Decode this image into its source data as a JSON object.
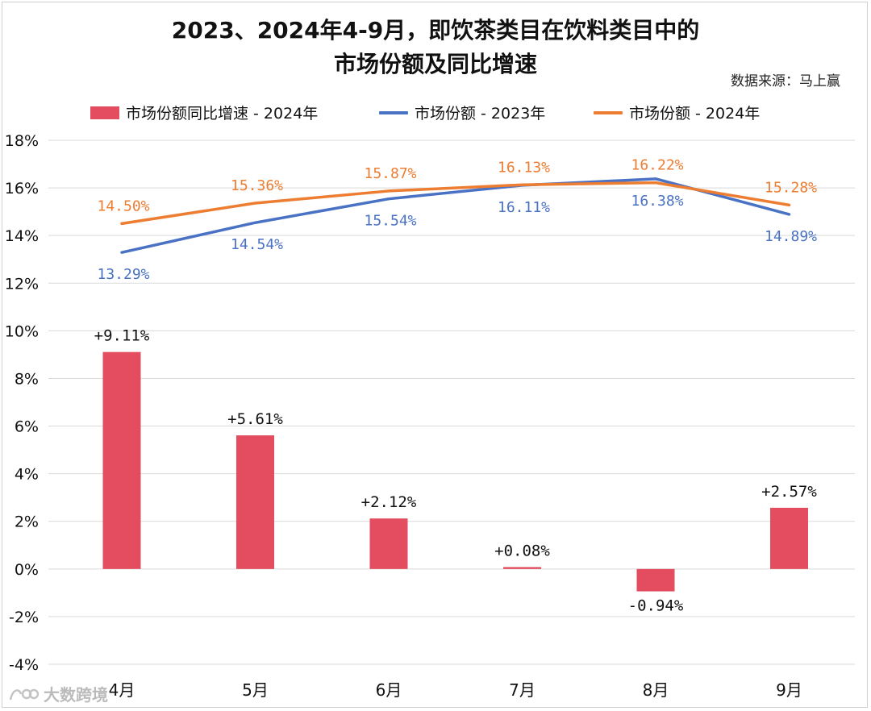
{
  "title_line1": "2023、2024年4-9月，即饮茶类目在饮料类目中的",
  "title_line2": "市场份额及同比增速",
  "source": "数据来源：马上赢",
  "watermark": "大数跨境",
  "colors": {
    "bar": "#E34D5F",
    "line_2023": "#4A72C4",
    "line_2024": "#ED7D31",
    "grid": "#d9d9d9"
  },
  "chart_data": {
    "type": "bar",
    "categories": [
      "4月",
      "5月",
      "6月",
      "7月",
      "8月",
      "9月"
    ],
    "ylim": [
      -4,
      18
    ],
    "yticks": [
      -4,
      -2,
      0,
      2,
      4,
      6,
      8,
      10,
      12,
      14,
      16,
      18
    ],
    "ytick_labels": [
      "-4%",
      "-2%",
      "0%",
      "2%",
      "4%",
      "6%",
      "8%",
      "10%",
      "12%",
      "14%",
      "16%",
      "18%"
    ],
    "grid": true,
    "legend_position": "top",
    "series": [
      {
        "name": "市场份额同比增速 - 2024年",
        "type": "bar",
        "values": [
          9.11,
          5.61,
          2.12,
          0.08,
          -0.94,
          2.57
        ],
        "labels": [
          "+9.11%",
          "+5.61%",
          "+2.12%",
          "+0.08%",
          "-0.94%",
          "+2.57%"
        ]
      },
      {
        "name": "市场份额 - 2023年",
        "type": "line",
        "values": [
          13.29,
          14.54,
          15.54,
          16.11,
          16.38,
          14.89
        ],
        "labels": [
          "13.29%",
          "14.54%",
          "15.54%",
          "16.11%",
          "16.38%",
          "14.89%"
        ]
      },
      {
        "name": "市场份额 - 2024年",
        "type": "line",
        "values": [
          14.5,
          15.36,
          15.87,
          16.13,
          16.22,
          15.28
        ],
        "labels": [
          "14.50%",
          "15.36%",
          "15.87%",
          "16.13%",
          "16.22%",
          "15.28%"
        ]
      }
    ]
  }
}
